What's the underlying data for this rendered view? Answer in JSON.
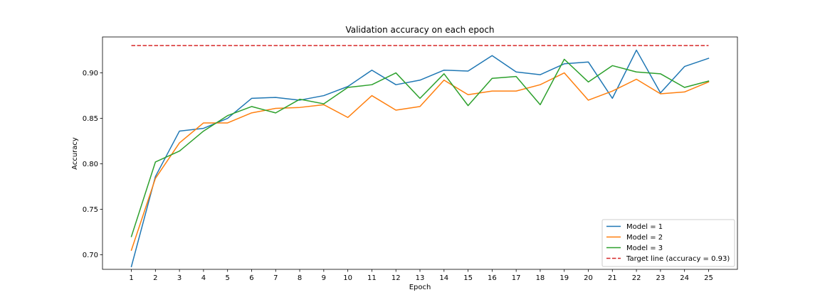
{
  "chart_data": {
    "type": "line",
    "title": "Validation accuracy on each epoch",
    "xlabel": "Epoch",
    "ylabel": "Accuracy",
    "x": [
      1,
      2,
      3,
      4,
      5,
      6,
      7,
      8,
      9,
      10,
      11,
      12,
      13,
      14,
      15,
      16,
      17,
      18,
      19,
      20,
      21,
      22,
      23,
      24,
      25
    ],
    "x_ticks": [
      "1",
      "2",
      "3",
      "4",
      "5",
      "6",
      "7",
      "8",
      "9",
      "10",
      "11",
      "12",
      "13",
      "14",
      "15",
      "16",
      "17",
      "18",
      "19",
      "20",
      "21",
      "22",
      "23",
      "24",
      "25"
    ],
    "xlim": [
      -0.2,
      26.2
    ],
    "y_ticks": [
      "0.70",
      "0.75",
      "0.80",
      "0.85",
      "0.90"
    ],
    "ylim": [
      0.684,
      0.9395
    ],
    "grid": false,
    "legend_position": "lower right",
    "series": [
      {
        "name": "Model = 1",
        "color": "#1f77b4",
        "values": [
          0.687,
          0.786,
          0.836,
          0.839,
          0.85,
          0.872,
          0.873,
          0.87,
          0.875,
          0.885,
          0.903,
          0.887,
          0.892,
          0.903,
          0.902,
          0.919,
          0.901,
          0.898,
          0.91,
          0.912,
          0.872,
          0.925,
          0.878,
          0.907,
          0.916
        ]
      },
      {
        "name": "Model = 2",
        "color": "#ff7f0e",
        "values": [
          0.705,
          0.784,
          0.823,
          0.845,
          0.845,
          0.856,
          0.861,
          0.862,
          0.865,
          0.851,
          0.875,
          0.859,
          0.863,
          0.892,
          0.876,
          0.88,
          0.88,
          0.887,
          0.9,
          0.87,
          0.88,
          0.893,
          0.877,
          0.879,
          0.89
        ]
      },
      {
        "name": "Model = 3",
        "color": "#2ca02c",
        "values": [
          0.72,
          0.802,
          0.814,
          0.836,
          0.853,
          0.863,
          0.856,
          0.871,
          0.866,
          0.884,
          0.887,
          0.9,
          0.872,
          0.899,
          0.864,
          0.894,
          0.896,
          0.865,
          0.915,
          0.89,
          0.908,
          0.901,
          0.899,
          0.884,
          0.891
        ]
      }
    ],
    "target": {
      "name": "Target line (accuracy = 0.93)",
      "color": "#d62728",
      "value": 0.93,
      "x_range": [
        1,
        25
      ]
    }
  }
}
